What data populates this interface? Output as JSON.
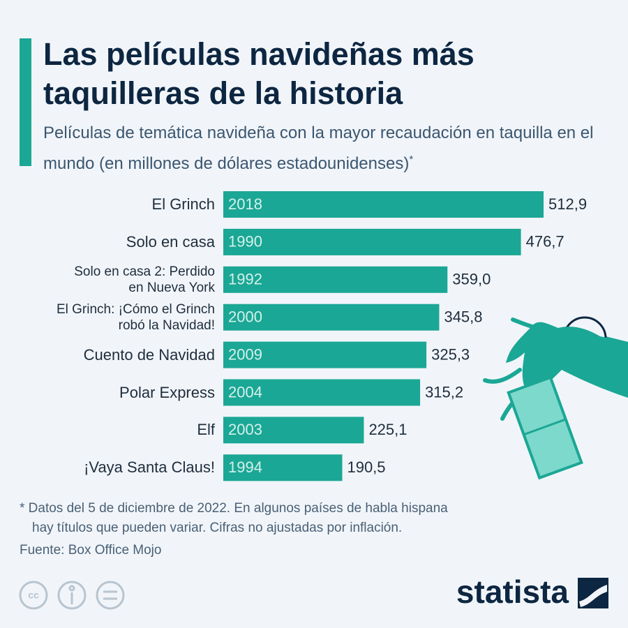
{
  "chart_data": {
    "type": "bar",
    "title": "Las películas navideñas más taquilleras de la historia",
    "subtitle": "Películas de temática navideña con la mayor recaudación en taquilla en el mundo (en millones de dólares estadounidenses)",
    "subtitle_note": "*",
    "categories": [
      "El Grinch",
      "Solo en casa",
      "Solo en casa 2: Perdido\nen Nueva York",
      "El Grinch: ¡Cómo el Grinch\nrobó la Navidad!",
      "Cuento de Navidad",
      "Polar Express",
      "Elf",
      "¡Vaya Santa Claus!"
    ],
    "years": [
      "2018",
      "1990",
      "1992",
      "2000",
      "2009",
      "2004",
      "2003",
      "1994"
    ],
    "values": [
      512.9,
      476.7,
      359.0,
      345.8,
      325.3,
      315.2,
      225.1,
      190.5
    ],
    "value_labels": [
      "512,9",
      "476,7",
      "359,0",
      "345,8",
      "325,3",
      "315,2",
      "225,1",
      "190,5"
    ],
    "color": "#1ba795",
    "orientation": "horizontal",
    "footnote": [
      "* Datos del 5 de diciembre de 2022. En algunos países de habla hispana",
      "hay títulos que pueden variar. Cifras no ajustadas por inflación."
    ],
    "source": "Fuente: Box Office Mojo",
    "logo": "statista"
  }
}
